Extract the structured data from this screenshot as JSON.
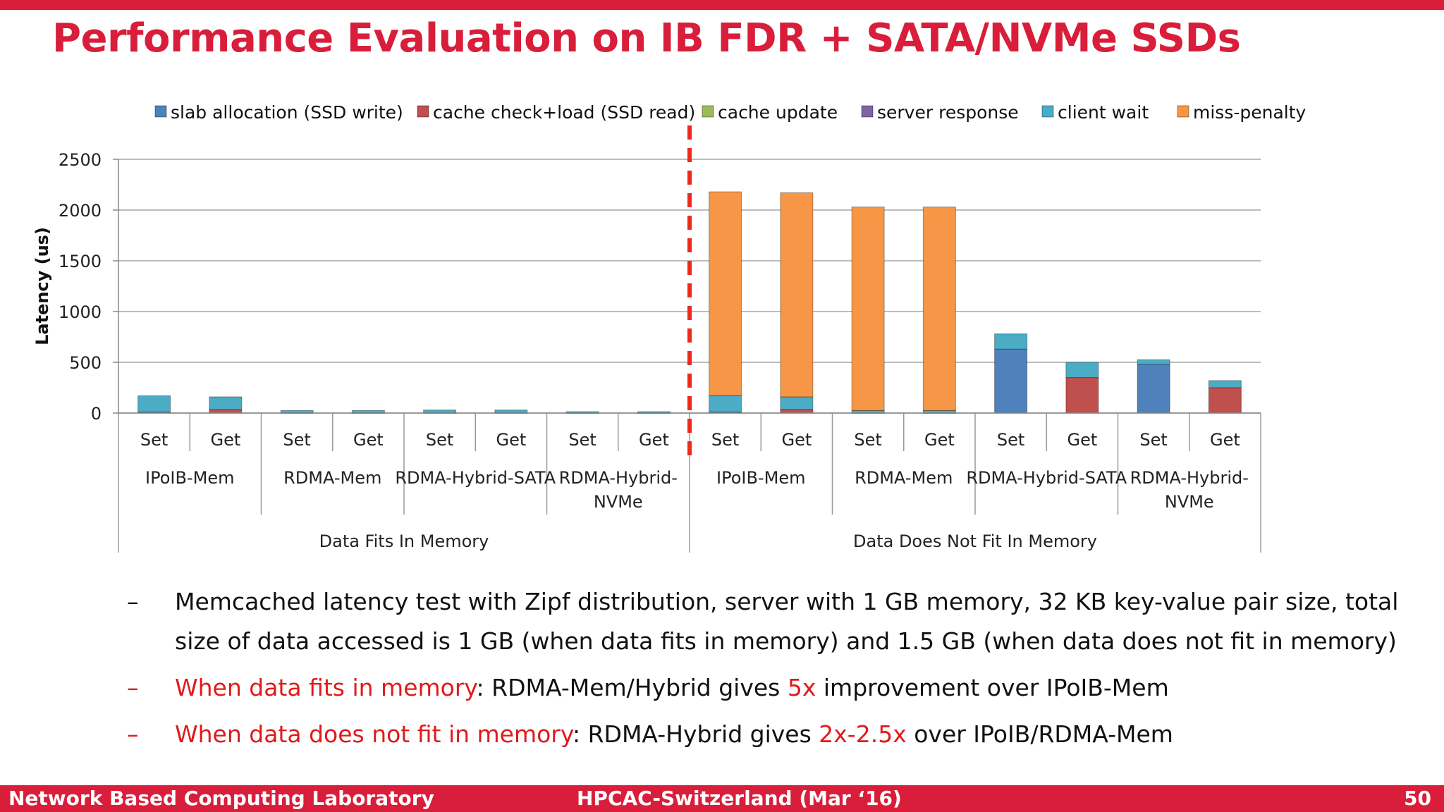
{
  "slide": {
    "title": "Performance Evaluation on IB FDR + SATA/NVMe SSDs"
  },
  "bullets": [
    {
      "dash": "–",
      "highlight": "",
      "text": "Memcached latency test with Zipf distribution, server with 1 GB memory, 32 KB key-value pair size, total size of data accessed is 1 GB (when data fits in memory) and 1.5 GB (when data does not fit in memory)"
    },
    {
      "dash": "–",
      "highlight": "When data fits in memory",
      "text_a": ": RDMA-Mem/Hybrid gives ",
      "emph": "5x",
      "text_b": " improvement over IPoIB-Mem"
    },
    {
      "dash": "–",
      "highlight": "When data does not fit in memory",
      "text_a": ": RDMA-Hybrid gives ",
      "emph": "2x-2.5x",
      "text_b": " over IPoIB/RDMA-Mem"
    }
  ],
  "footer": {
    "left": "Network Based Computing Laboratory",
    "center": "HPCAC-Switzerland (Mar ‘16)",
    "right": "50"
  },
  "chart_data": {
    "type": "bar",
    "stacked": true,
    "ylabel": "Latency (us)",
    "ylim": [
      0,
      2500
    ],
    "yticks": [
      0,
      500,
      1000,
      1500,
      2000,
      2500
    ],
    "grid": true,
    "legend_position": "top",
    "groups": [
      {
        "label": "Data Fits In Memory",
        "configs": [
          "IPoIB-Mem",
          "RDMA-Mem",
          "RDMA-Hybrid-SATA",
          "RDMA-Hybrid-NVMe"
        ]
      },
      {
        "label": "Data Does Not Fit In Memory",
        "configs": [
          "IPoIB-Mem",
          "RDMA-Mem",
          "RDMA-Hybrid-SATA",
          "RDMA-Hybrid-NVMe"
        ]
      }
    ],
    "config_labels": [
      "IPoIB-Mem",
      "RDMA-Mem",
      "RDMA-Hybrid-SATA",
      "RDMA-Hybrid-\nNVMe",
      "IPoIB-Mem",
      "RDMA-Mem",
      "RDMA-Hybrid-SATA",
      "RDMA-Hybrid-\nNVMe"
    ],
    "categories": [
      "Set",
      "Get",
      "Set",
      "Get",
      "Set",
      "Get",
      "Set",
      "Get",
      "Set",
      "Get",
      "Set",
      "Get",
      "Set",
      "Get",
      "Set",
      "Get"
    ],
    "series": [
      {
        "name": "slab allocation (SSD write)",
        "color": "#4f81bd",
        "values": [
          10,
          0,
          3,
          0,
          3,
          0,
          2,
          0,
          10,
          0,
          3,
          0,
          630,
          0,
          480,
          0
        ]
      },
      {
        "name": "cache check+load (SSD read)",
        "color": "#c0504d",
        "values": [
          0,
          35,
          0,
          3,
          0,
          3,
          0,
          2,
          0,
          35,
          0,
          3,
          0,
          350,
          0,
          250
        ]
      },
      {
        "name": "cache update",
        "color": "#9bbb59",
        "values": [
          0,
          0,
          0,
          0,
          0,
          0,
          0,
          0,
          0,
          0,
          0,
          0,
          0,
          0,
          0,
          0
        ]
      },
      {
        "name": "server response",
        "color": "#8064a2",
        "values": [
          0,
          0,
          0,
          0,
          0,
          0,
          0,
          0,
          0,
          0,
          0,
          0,
          0,
          0,
          0,
          0
        ]
      },
      {
        "name": "client wait",
        "color": "#4bacc6",
        "values": [
          160,
          125,
          22,
          22,
          27,
          27,
          12,
          12,
          160,
          125,
          22,
          22,
          150,
          150,
          45,
          70
        ]
      },
      {
        "name": "miss-penalty",
        "color": "#f79646",
        "values": [
          0,
          0,
          0,
          0,
          0,
          0,
          0,
          0,
          2010,
          2010,
          2005,
          2005,
          0,
          0,
          0,
          0
        ]
      }
    ]
  }
}
